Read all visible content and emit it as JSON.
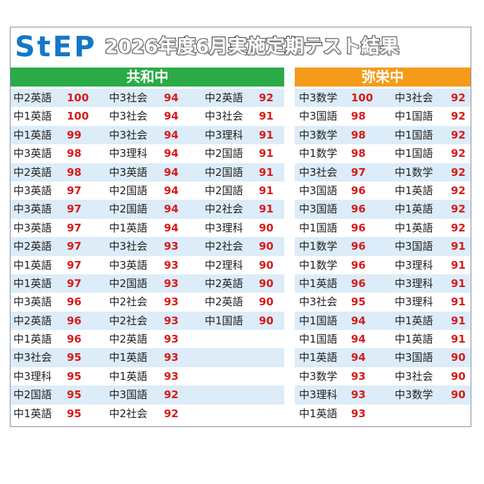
{
  "header": {
    "logo": "StEP",
    "title": "2026年度6月実施定期テスト結果"
  },
  "colors": {
    "green": "#2bab47",
    "orange": "#f49b1a",
    "score_red": "#d81b1b",
    "stripe": "#dcecf8",
    "logo_blue": "#1477c8"
  },
  "kyowa": {
    "name": "共和中",
    "rows": [
      [
        [
          "中2英語",
          "100"
        ],
        [
          "中3社会",
          "94"
        ],
        [
          "中2英語",
          "92"
        ]
      ],
      [
        [
          "中1英語",
          "100"
        ],
        [
          "中3社会",
          "94"
        ],
        [
          "中3社会",
          "91"
        ]
      ],
      [
        [
          "中1英語",
          "99"
        ],
        [
          "中3社会",
          "94"
        ],
        [
          "中3理科",
          "91"
        ]
      ],
      [
        [
          "中3英語",
          "98"
        ],
        [
          "中3理科",
          "94"
        ],
        [
          "中2国語",
          "91"
        ]
      ],
      [
        [
          "中2英語",
          "98"
        ],
        [
          "中3英語",
          "94"
        ],
        [
          "中2国語",
          "91"
        ]
      ],
      [
        [
          "中3英語",
          "97"
        ],
        [
          "中2国語",
          "94"
        ],
        [
          "中2国語",
          "91"
        ]
      ],
      [
        [
          "中3英語",
          "97"
        ],
        [
          "中2国語",
          "94"
        ],
        [
          "中2社会",
          "91"
        ]
      ],
      [
        [
          "中3英語",
          "97"
        ],
        [
          "中1英語",
          "94"
        ],
        [
          "中3理科",
          "90"
        ]
      ],
      [
        [
          "中2英語",
          "97"
        ],
        [
          "中3社会",
          "93"
        ],
        [
          "中2社会",
          "90"
        ]
      ],
      [
        [
          "中1英語",
          "97"
        ],
        [
          "中3英語",
          "93"
        ],
        [
          "中2理科",
          "90"
        ]
      ],
      [
        [
          "中1英語",
          "97"
        ],
        [
          "中2国語",
          "93"
        ],
        [
          "中2英語",
          "90"
        ]
      ],
      [
        [
          "中3英語",
          "96"
        ],
        [
          "中2社会",
          "93"
        ],
        [
          "中2英語",
          "90"
        ]
      ],
      [
        [
          "中2英語",
          "96"
        ],
        [
          "中2社会",
          "93"
        ],
        [
          "中1国語",
          "90"
        ]
      ],
      [
        [
          "中1英語",
          "96"
        ],
        [
          "中2英語",
          "93"
        ],
        [
          "",
          ""
        ]
      ],
      [
        [
          "中3社会",
          "95"
        ],
        [
          "中1英語",
          "93"
        ],
        [
          "",
          ""
        ]
      ],
      [
        [
          "中3理科",
          "95"
        ],
        [
          "中1英語",
          "93"
        ],
        [
          "",
          ""
        ]
      ],
      [
        [
          "中2国語",
          "95"
        ],
        [
          "中3国語",
          "92"
        ],
        [
          "",
          ""
        ]
      ],
      [
        [
          "中1英語",
          "95"
        ],
        [
          "中2社会",
          "92"
        ],
        [
          "",
          ""
        ]
      ]
    ]
  },
  "yasaka": {
    "name": "弥栄中",
    "rows": [
      [
        [
          "中3数学",
          "100"
        ],
        [
          "中3社会",
          "92"
        ]
      ],
      [
        [
          "中3国語",
          "98"
        ],
        [
          "中1国語",
          "92"
        ]
      ],
      [
        [
          "中3数学",
          "98"
        ],
        [
          "中1国語",
          "92"
        ]
      ],
      [
        [
          "中1数学",
          "98"
        ],
        [
          "中1国語",
          "92"
        ]
      ],
      [
        [
          "中3社会",
          "97"
        ],
        [
          "中1数学",
          "92"
        ]
      ],
      [
        [
          "中3国語",
          "96"
        ],
        [
          "中1英語",
          "92"
        ]
      ],
      [
        [
          "中3国語",
          "96"
        ],
        [
          "中1英語",
          "92"
        ]
      ],
      [
        [
          "中1国語",
          "96"
        ],
        [
          "中1英語",
          "92"
        ]
      ],
      [
        [
          "中1数学",
          "96"
        ],
        [
          "中3国語",
          "91"
        ]
      ],
      [
        [
          "中1数学",
          "96"
        ],
        [
          "中3理科",
          "91"
        ]
      ],
      [
        [
          "中1英語",
          "96"
        ],
        [
          "中3理科",
          "91"
        ]
      ],
      [
        [
          "中3社会",
          "95"
        ],
        [
          "中3理科",
          "91"
        ]
      ],
      [
        [
          "中1国語",
          "94"
        ],
        [
          "中1英語",
          "91"
        ]
      ],
      [
        [
          "中1国語",
          "94"
        ],
        [
          "中1英語",
          "91"
        ]
      ],
      [
        [
          "中1英語",
          "94"
        ],
        [
          "中3国語",
          "90"
        ]
      ],
      [
        [
          "中3数学",
          "93"
        ],
        [
          "中3社会",
          "90"
        ]
      ],
      [
        [
          "中3理科",
          "93"
        ],
        [
          "中3数学",
          "90"
        ]
      ],
      [
        [
          "中1英語",
          "93"
        ],
        [
          "",
          ""
        ]
      ]
    ]
  }
}
